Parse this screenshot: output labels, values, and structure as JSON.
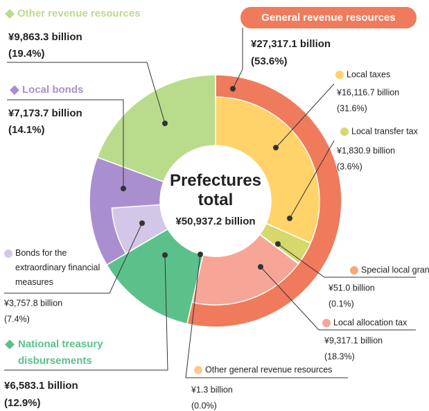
{
  "chart_data": {
    "type": "sunburst",
    "title": "Prefectures total",
    "total": 50937.2,
    "total_label": "¥50,937.2 billion",
    "groups": [
      {
        "name": "General revenue resources",
        "value": 27317.1,
        "value_label": "¥27,317.1 billion",
        "percent": 53.6,
        "percent_label": "(53.6%)",
        "color": "#f07a5c",
        "items": [
          {
            "name": "Local taxes",
            "value": 16116.7,
            "value_label": "¥16,116.7 billion",
            "percent": 31.6,
            "percent_label": "(31.6%)",
            "color": "#ffd36a"
          },
          {
            "name": "Local transfer tax",
            "value": 1830.9,
            "value_label": "¥1,830.9 billion",
            "percent": 3.6,
            "percent_label": "(3.6%)",
            "color": "#d5d86a"
          },
          {
            "name": "Special local grants",
            "value": 51.0,
            "value_label": "¥51.0 billion",
            "percent": 0.1,
            "percent_label": "(0.1%)",
            "color": "#f7a97a"
          },
          {
            "name": "Local allocation tax",
            "value": 9317.1,
            "value_label": "¥9,317.1 billion",
            "percent": 18.3,
            "percent_label": "(18.3%)",
            "color": "#f6a596"
          },
          {
            "name": "Other general revenue resources",
            "value": 1.3,
            "value_label": "¥1.3 billion",
            "percent": 0.0,
            "percent_label": "(0.0%)",
            "color": "#ffc98a"
          }
        ]
      },
      {
        "name": "National treasury disbursements",
        "value": 6583.1,
        "value_label": "¥6,583.1 billion",
        "percent": 12.9,
        "percent_label": "(12.9%)",
        "color": "#5cc08a",
        "items": []
      },
      {
        "name": "Local bonds",
        "value": 7173.7,
        "value_label": "¥7,173.7 billion",
        "percent": 14.1,
        "percent_label": "(14.1%)",
        "color": "#a98fcf",
        "items": [
          {
            "name": "Bonds for the extraordinary financial measures",
            "value": 3757.8,
            "value_label": "¥3,757.8 billion",
            "percent": 7.4,
            "percent_label": "(7.4%)",
            "color": "#d3c7e8"
          }
        ]
      },
      {
        "name": "Other revenue resources",
        "value": 9863.3,
        "value_label": "¥9,863.3 billion",
        "percent": 19.4,
        "percent_label": "(19.4%)",
        "color": "#b9dc8c",
        "items": []
      }
    ]
  }
}
